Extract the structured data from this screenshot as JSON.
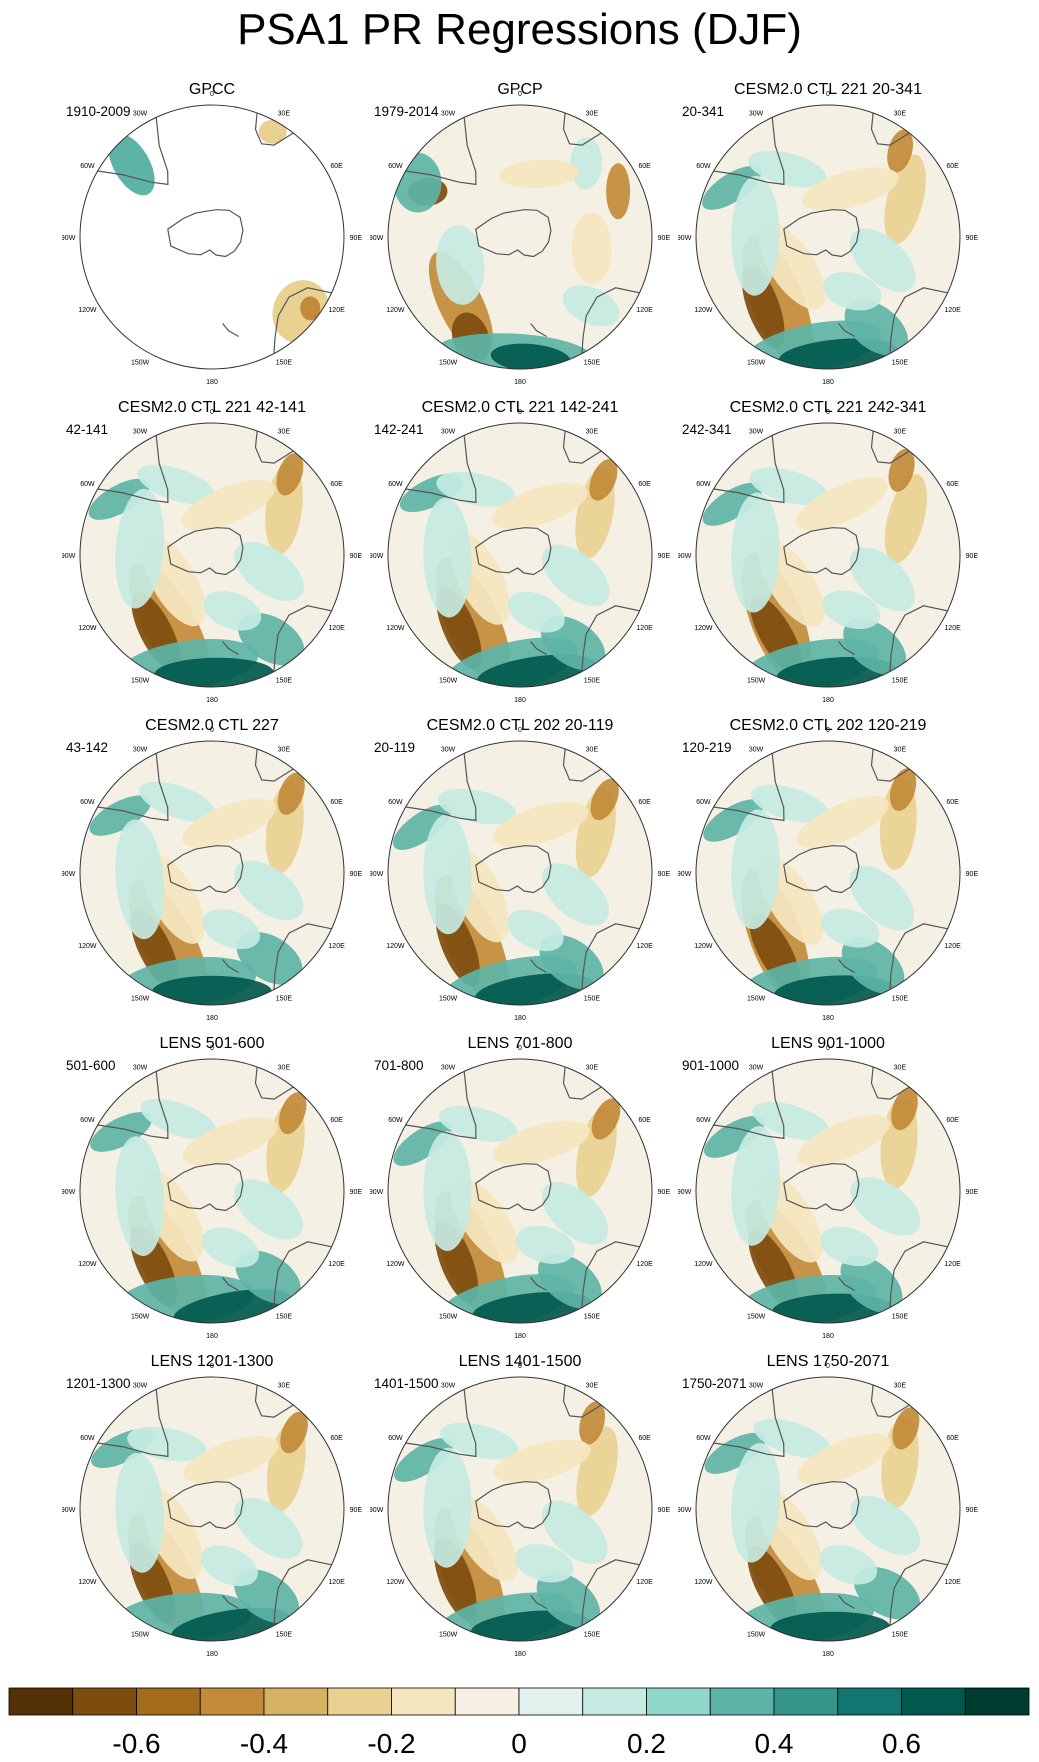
{
  "title": "PSA1 PR Regressions (DJF)",
  "longitude_labels": [
    "0",
    "30E",
    "60E",
    "90E",
    "120E",
    "150E",
    "180",
    "150W",
    "120W",
    "90W",
    "60W",
    "30W"
  ],
  "panels": [
    {
      "title": "GPCC",
      "period": "1910-2009",
      "field": "gpcc"
    },
    {
      "title": "GPCP",
      "period": "1979-2014",
      "field": "gpcp"
    },
    {
      "title": "CESM2.0 CTL 221 20-341",
      "period": "20-341",
      "field": "model"
    },
    {
      "title": "CESM2.0 CTL 221 42-141",
      "period": "42-141",
      "field": "model"
    },
    {
      "title": "CESM2.0 CTL 221 142-241",
      "period": "142-241",
      "field": "model"
    },
    {
      "title": "CESM2.0 CTL 221 242-341",
      "period": "242-341",
      "field": "model"
    },
    {
      "title": "CESM2.0 CTL 227",
      "period": "43-142",
      "field": "model"
    },
    {
      "title": "CESM2.0 CTL 202 20-119",
      "period": "20-119",
      "field": "model"
    },
    {
      "title": "CESM2.0 CTL 202 120-219",
      "period": "120-219",
      "field": "model"
    },
    {
      "title": "LENS 501-600",
      "period": "501-600",
      "field": "model"
    },
    {
      "title": "LENS 701-800",
      "period": "701-800",
      "field": "model"
    },
    {
      "title": "LENS 901-1000",
      "period": "901-1000",
      "field": "model"
    },
    {
      "title": "LENS 1201-1300",
      "period": "1201-1300",
      "field": "model"
    },
    {
      "title": "LENS 1401-1500",
      "period": "1401-1500",
      "field": "model"
    },
    {
      "title": "LENS 1750-2071",
      "period": "1750-2071",
      "field": "model"
    }
  ],
  "colorbar": {
    "colors": [
      "#543005",
      "#7e4c0e",
      "#a36b1c",
      "#c18b3a",
      "#d7b263",
      "#e9d191",
      "#f5e6c0",
      "#f5f0e3",
      "#e3f2ee",
      "#c5eae2",
      "#90d7ca",
      "#5db4a6",
      "#35958b",
      "#127570",
      "#01594e",
      "#003c30"
    ],
    "labels": [
      "-0.6",
      "-0.4",
      "-0.2",
      "0",
      "0.2",
      "0.4",
      "0.6"
    ]
  },
  "palette": {
    "dry3": "#7e4c0e",
    "dry2": "#c18b3a",
    "dry1": "#e9d191",
    "dry0": "#f5e6c0",
    "wet0": "#e3f2ee",
    "wet1": "#c5eae2",
    "wet2": "#5db4a6",
    "wet3": "#01594e",
    "background": "#f4f0e3",
    "coast": "#555555",
    "circle": "#333333"
  }
}
